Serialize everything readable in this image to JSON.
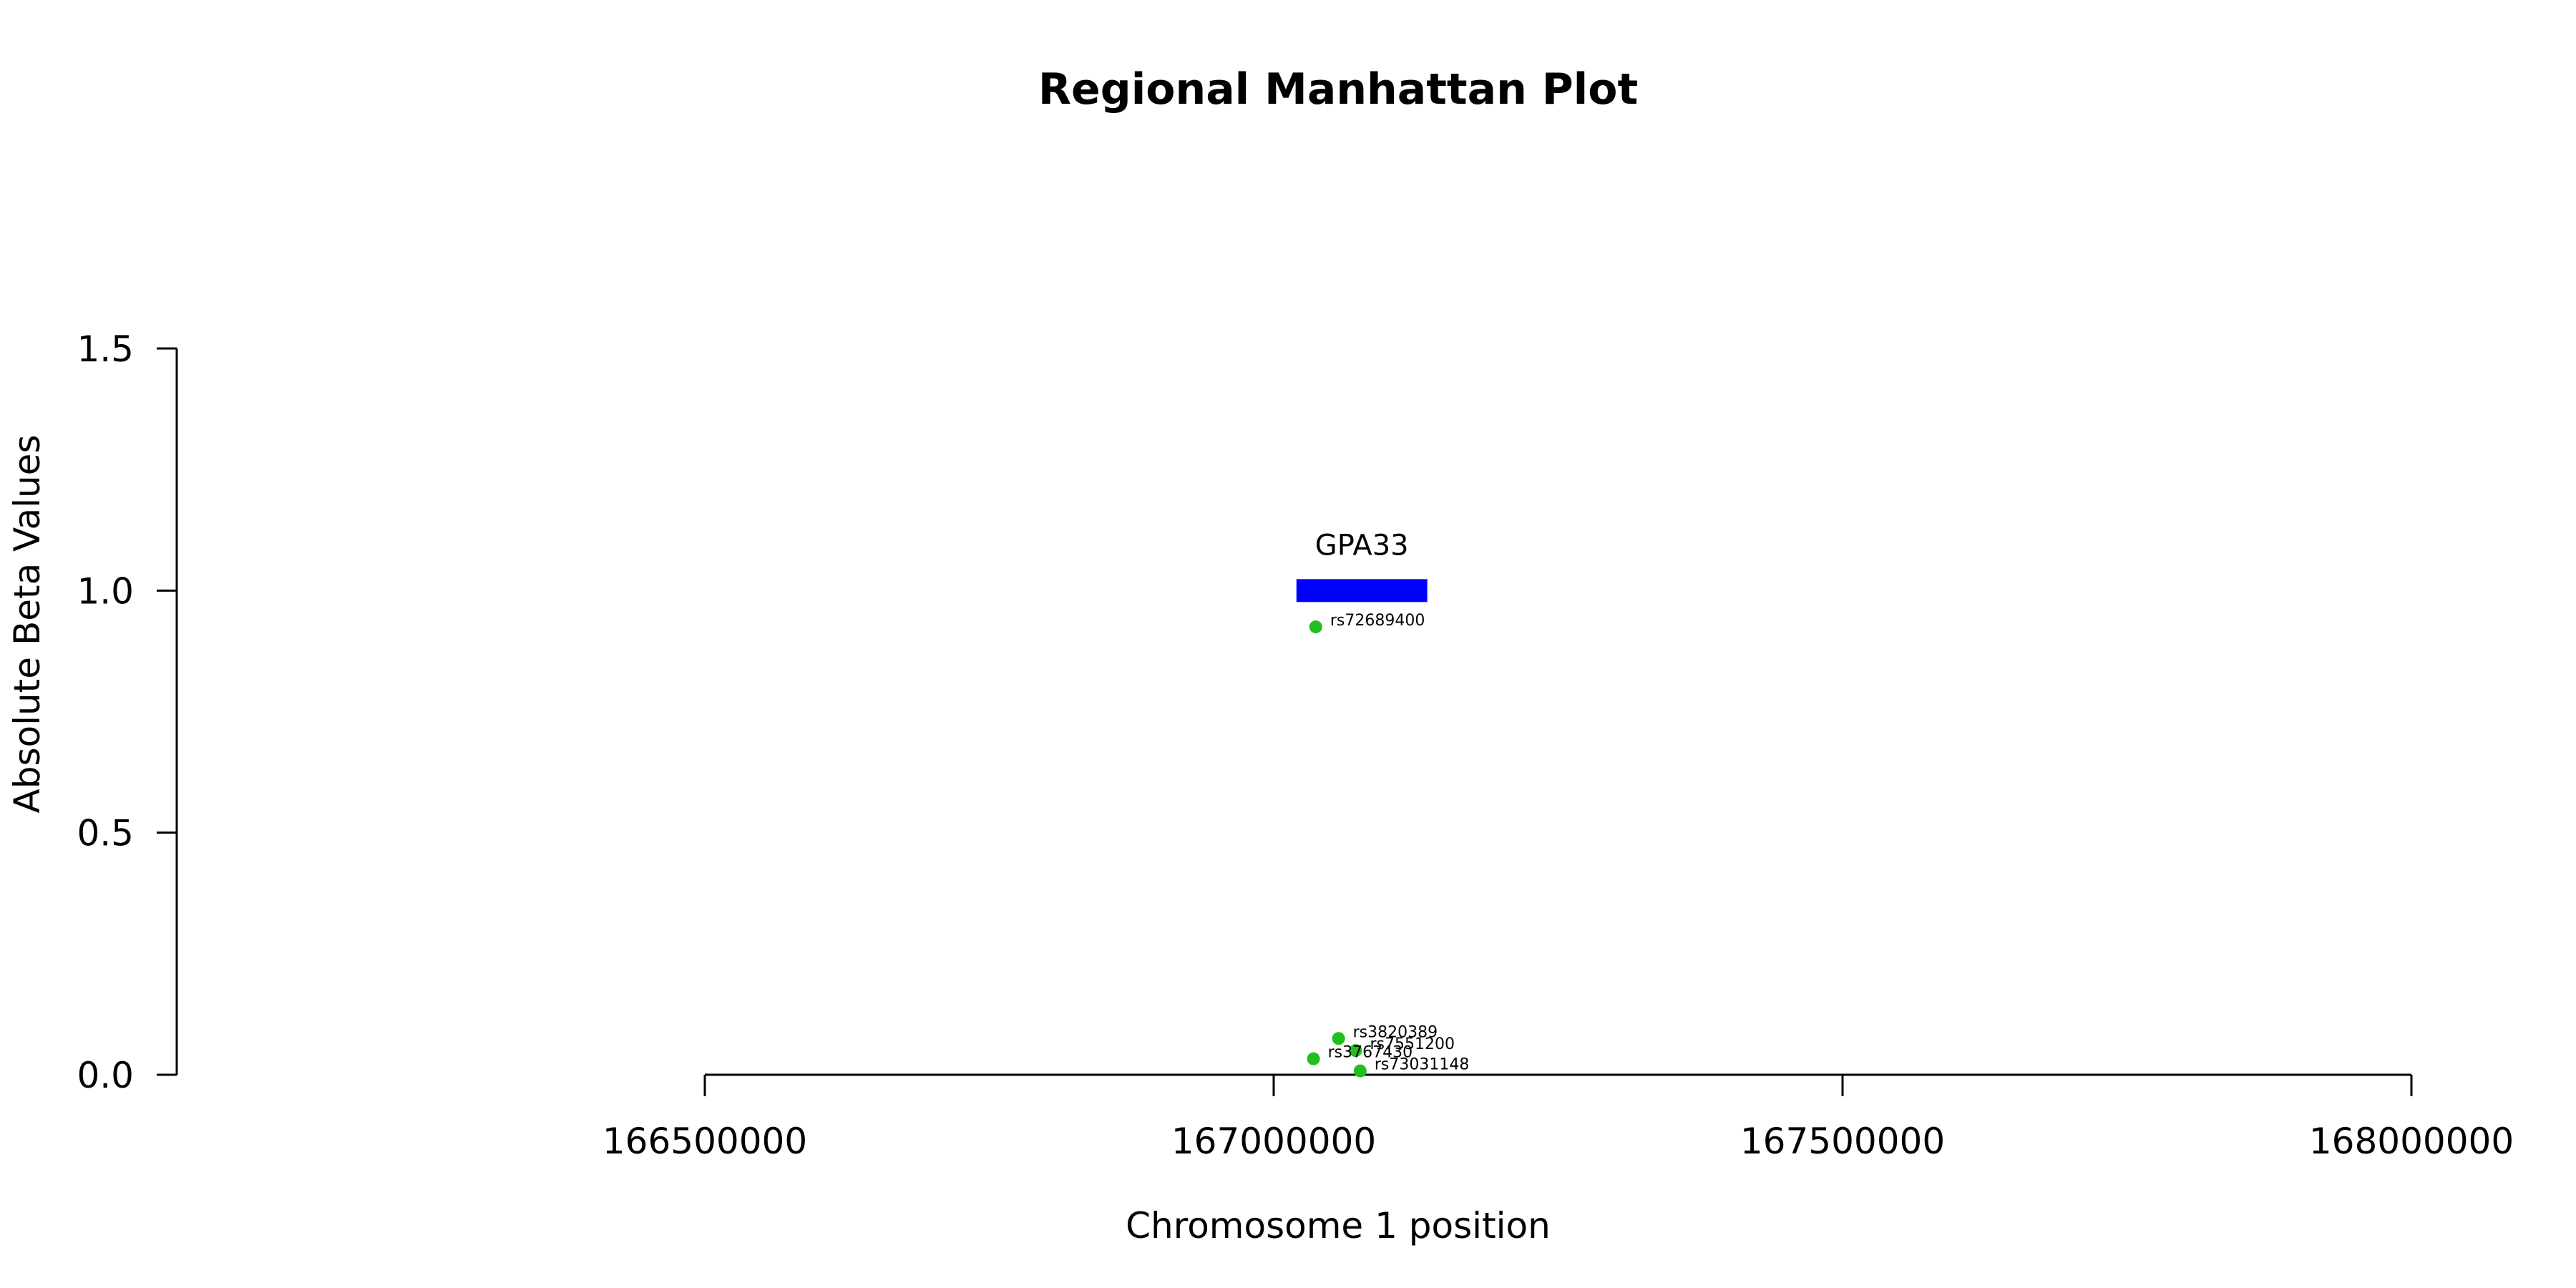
{
  "chart_data": {
    "type": "scatter",
    "title": "Regional Manhattan Plot",
    "xlabel": "Chromosome 1 position",
    "ylabel": "Absolute Beta Values",
    "xlim": [
      166500000,
      168000000
    ],
    "ylim": [
      0,
      1.5
    ],
    "x_ticks": [
      166500000,
      167000000,
      167500000,
      168000000
    ],
    "x_tick_labels": [
      "166500000",
      "167000000",
      "167500000",
      "168000000"
    ],
    "y_ticks": [
      0,
      0.5,
      1.0,
      1.5
    ],
    "y_tick_labels": [
      "0.0",
      "0.5",
      "1.0",
      "1.5"
    ],
    "grid": false,
    "point_color": "#1fbf1f",
    "gene_color": "#0000ff",
    "genes": [
      {
        "name": "GPA33",
        "start": 167020000,
        "end": 167135000,
        "y": 1.0
      }
    ],
    "points": [
      {
        "label": "rs72689400",
        "x": 167037000,
        "y": 0.925
      },
      {
        "label": "rs3820389",
        "x": 167057000,
        "y": 0.075
      },
      {
        "label": "rs7551200",
        "x": 167072000,
        "y": 0.05
      },
      {
        "label": "rs3767430",
        "x": 167035000,
        "y": 0.033
      },
      {
        "label": "rs73031148",
        "x": 167076000,
        "y": 0.008
      }
    ]
  }
}
